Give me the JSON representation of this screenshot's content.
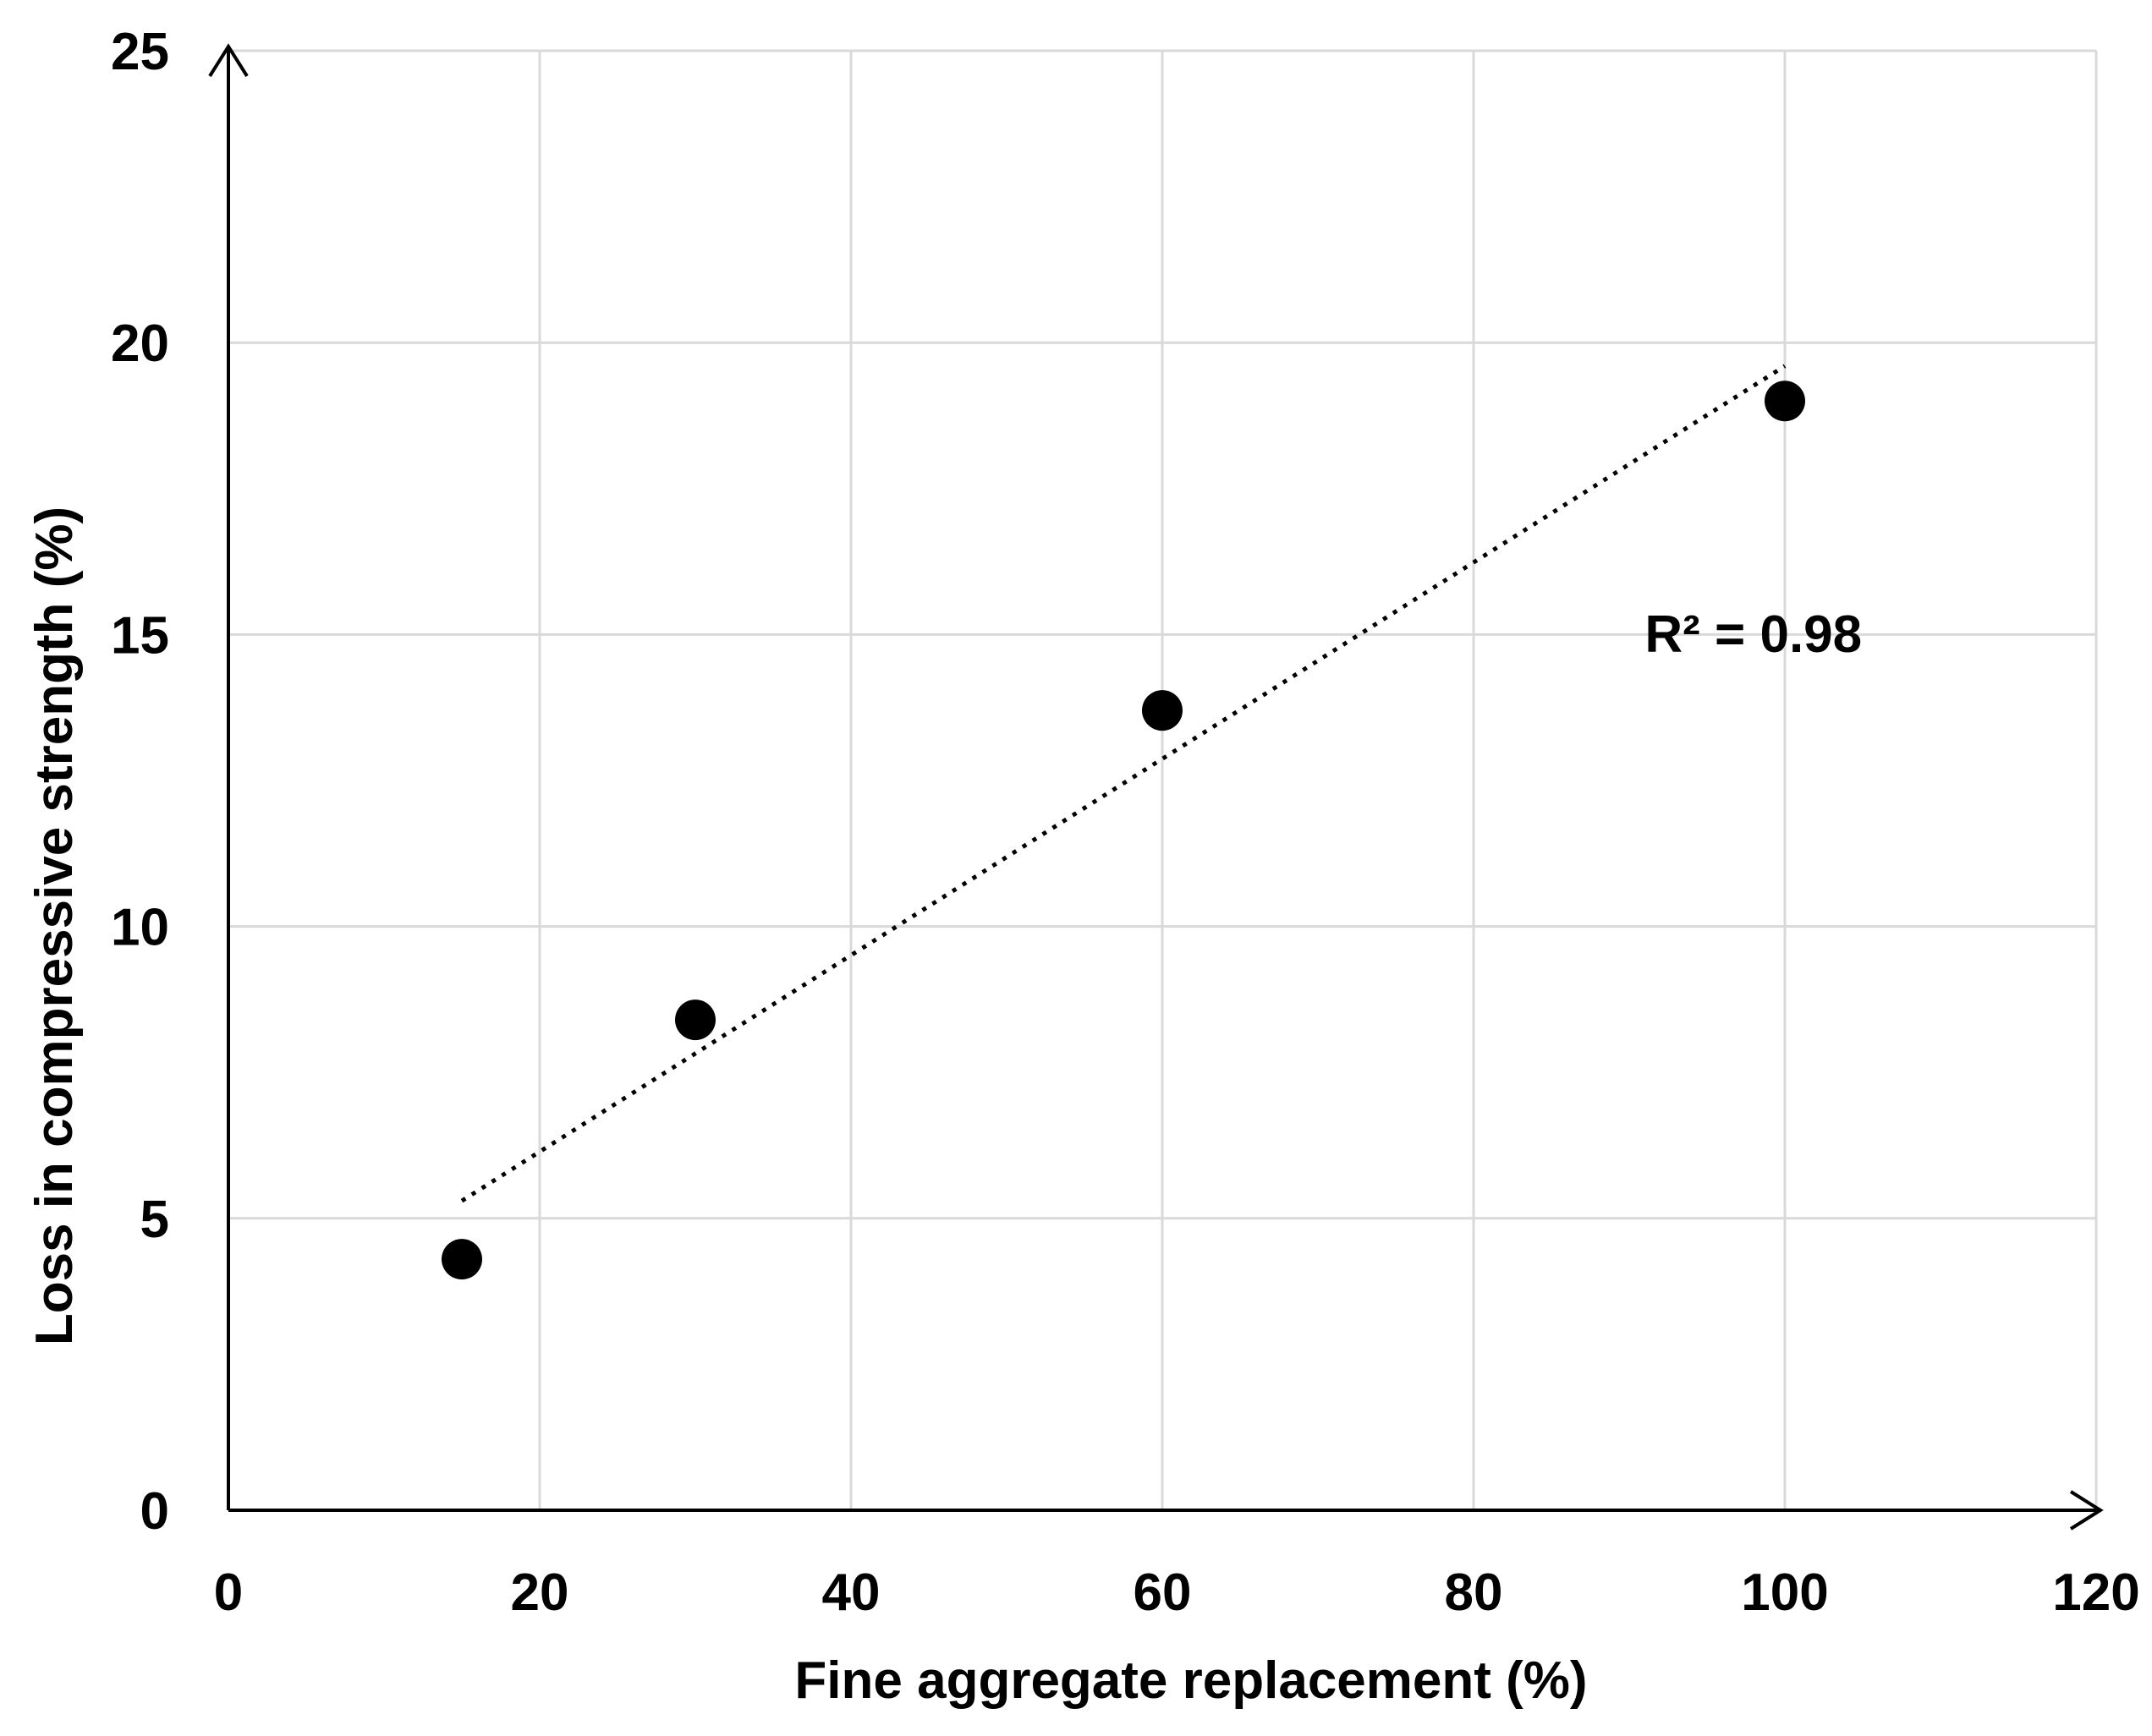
{
  "chart_data": {
    "type": "scatter",
    "title": "",
    "xlabel": "Fine aggregate replacement (%)",
    "ylabel": "Loss in compressive strength (%)",
    "xlim": [
      0,
      120
    ],
    "ylim": [
      0,
      25
    ],
    "xticks": [
      0,
      20,
      40,
      60,
      80,
      100,
      120
    ],
    "yticks": [
      0,
      5,
      10,
      15,
      20,
      25
    ],
    "xtick_labels": [
      "0",
      "20",
      "40",
      "60",
      "80",
      "100",
      "120"
    ],
    "ytick_labels": [
      "0",
      "5",
      "10",
      "15",
      "20",
      "25"
    ],
    "grid": true,
    "legend": "none",
    "series": [
      {
        "x": [
          15,
          30,
          60,
          100
        ],
        "y": [
          4.3,
          8.4,
          13.7,
          19.0
        ],
        "color": "#000000",
        "marker": "circle"
      }
    ],
    "trendline": {
      "type": "linear",
      "style": "dotted",
      "color": "#000000",
      "x": [
        15,
        100
      ],
      "y": [
        5.3,
        19.6
      ]
    },
    "annotations": [
      {
        "text": "R² = 0.98",
        "x": 91,
        "y": 14.7
      }
    ]
  },
  "colors": {
    "grid": "#d9d9d9",
    "axis": "#000000",
    "marker": "#000000"
  }
}
